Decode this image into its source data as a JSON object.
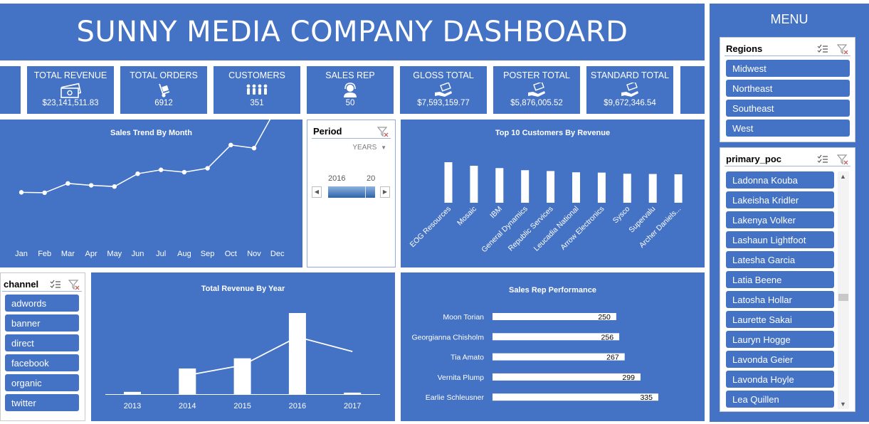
{
  "title": "SUNNY MEDIA COMPANY DASHBOARD",
  "menu": {
    "title": "MENU"
  },
  "kpis": [
    {
      "label": "TOTAL REVENUE",
      "value": "$23,141,511.83",
      "icon": "money-icon"
    },
    {
      "label": "TOTAL ORDERS",
      "value": "6912",
      "icon": "hand-truck-icon"
    },
    {
      "label": "CUSTOMERS",
      "value": "351",
      "icon": "people-group-icon"
    },
    {
      "label": "SALES REP",
      "value": "50",
      "icon": "support-agent-icon"
    },
    {
      "label": "GLOSS TOTAL",
      "value": "$7,593,159.77",
      "icon": "hand-money-icon"
    },
    {
      "label": "POSTER  TOTAL",
      "value": "$5,876,005.52",
      "icon": "hand-money-icon"
    },
    {
      "label": "STANDARD TOTAL",
      "value": "$9,672,346.54",
      "icon": "hand-money-icon"
    }
  ],
  "regions": {
    "title": "Regions",
    "items": [
      "Midwest",
      "Northeast",
      "Southeast",
      "West"
    ]
  },
  "primary_poc": {
    "title": "primary_poc",
    "items": [
      "Ladonna Kouba",
      "Lakeisha Kridler",
      "Lakenya Volker",
      "Lashaun Lightfoot",
      "Latesha Garcia",
      "Latia Beene",
      "Latosha Hollar",
      "Laurette Sakai",
      "Lauryn Hogge",
      "Lavonda Geier",
      "Lavonda Hoyle",
      "Lea Quillen"
    ]
  },
  "channel": {
    "title": "channel",
    "items": [
      "adwords",
      "banner",
      "direct",
      "facebook",
      "organic",
      "twitter"
    ]
  },
  "period": {
    "title": "Period",
    "level": "YEARS",
    "years": [
      "2016",
      "20"
    ]
  },
  "chart_data": [
    {
      "type": "line",
      "title": "Sales Trend By Month",
      "categories": [
        "Jan",
        "Feb",
        "Mar",
        "Apr",
        "May",
        "Jun",
        "Jul",
        "Aug",
        "Sep",
        "Oct",
        "Nov",
        "Dec"
      ],
      "values": [
        0.68,
        0.66,
        1.14,
        1.04,
        0.98,
        1.64,
        1.84,
        1.72,
        1.92,
        3.12,
        2.96,
        5.12
      ],
      "ylim": [
        -4,
        7
      ],
      "grid": false
    },
    {
      "type": "bar",
      "title": "Top 10 Customers By Revenue",
      "categories": [
        "EOG Resources",
        "Mosaic",
        "IBM",
        "General Dynamics",
        "Republic Services",
        "Leucadia National",
        "Arrow Electronics",
        "Sysco",
        "Supervalu",
        "Archer Daniels..."
      ],
      "values": [
        382,
        348,
        326,
        306,
        298,
        286,
        283,
        272,
        270,
        267
      ],
      "ylim": [
        0,
        400
      ]
    },
    {
      "type": "bar",
      "title": "Total Revenue By Year",
      "categories": [
        "2013",
        "2014",
        "2015",
        "2016",
        "2017"
      ],
      "series": [
        {
          "type": "bar",
          "values": [
            0.12,
            1.36,
            1.9,
            4.3,
            0.08
          ]
        },
        {
          "type": "line",
          "values": [
            null,
            1.0,
            1.53,
            3.03,
            2.26
          ]
        }
      ],
      "ylim": [
        0,
        4.3
      ]
    },
    {
      "type": "bar",
      "orientation": "horizontal",
      "title": "Sales Rep Performance",
      "categories": [
        "Moon Torian",
        "Georgianna Chisholm",
        "Tia Amato",
        "Vernita Plump",
        "Earlie Schleusner"
      ],
      "values": [
        250,
        256,
        267,
        299,
        335
      ],
      "xlim": [
        0,
        335
      ]
    }
  ]
}
